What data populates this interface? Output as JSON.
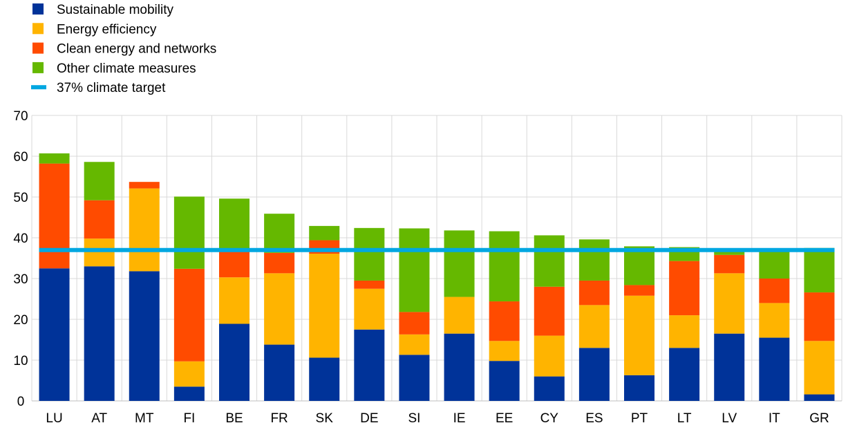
{
  "chart_data": {
    "type": "bar",
    "stacked": true,
    "categories": [
      "LU",
      "AT",
      "MT",
      "FI",
      "BE",
      "FR",
      "SK",
      "DE",
      "SI",
      "IE",
      "EE",
      "CY",
      "ES",
      "PT",
      "LT",
      "LV",
      "IT",
      "GR"
    ],
    "series": [
      {
        "name": "Sustainable mobility",
        "color": "#003399",
        "values": [
          32.5,
          33.0,
          31.8,
          3.5,
          18.9,
          13.8,
          10.6,
          17.5,
          11.3,
          16.5,
          9.8,
          6.0,
          13.0,
          6.3,
          13.0,
          16.5,
          15.5,
          1.6
        ]
      },
      {
        "name": "Energy efficiency",
        "color": "#FFB400",
        "values": [
          0.0,
          6.8,
          20.3,
          6.2,
          11.4,
          17.5,
          25.5,
          10.0,
          5.0,
          9.0,
          4.9,
          10.0,
          10.5,
          19.5,
          8.0,
          14.8,
          8.5,
          13.1
        ]
      },
      {
        "name": "Clean energy and networks",
        "color": "#FF4B00",
        "values": [
          25.7,
          9.4,
          1.6,
          22.7,
          7.0,
          5.0,
          3.3,
          2.0,
          5.5,
          0.0,
          9.7,
          12.0,
          6.0,
          2.6,
          13.3,
          4.5,
          6.0,
          11.9
        ]
      },
      {
        "name": "Other climate measures",
        "color": "#65B800",
        "values": [
          2.5,
          9.4,
          0.0,
          17.7,
          12.3,
          9.6,
          3.5,
          12.9,
          20.5,
          16.3,
          17.2,
          12.6,
          10.1,
          9.5,
          3.4,
          1.0,
          7.0,
          10.9
        ]
      }
    ],
    "target_line": {
      "name": "37% climate target",
      "value": 37,
      "color": "#00A7E1"
    },
    "ylim": [
      0,
      70
    ],
    "yticks": [
      0,
      10,
      20,
      30,
      40,
      50,
      60,
      70
    ],
    "grid": true,
    "legend_position": "top-left",
    "title": "",
    "xlabel": "",
    "ylabel": ""
  }
}
